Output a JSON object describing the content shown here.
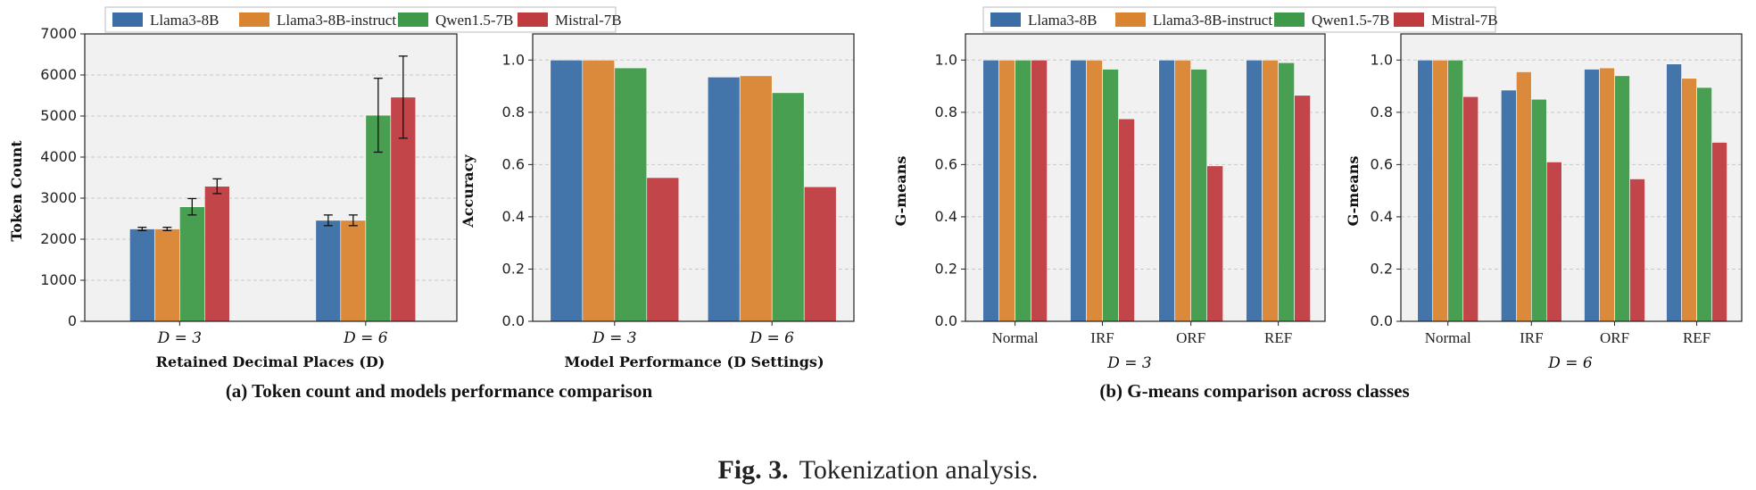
{
  "figure_caption": {
    "label": "Fig. 3.",
    "text": "Tokenization analysis."
  },
  "colors": {
    "Llama3-8B": "#3a6ea5",
    "Llama3-8B-instruct": "#d98430",
    "Qwen1.5-7B": "#3e9a48",
    "Mistral-7B": "#bf3b3f",
    "panel_bg": "#f1f1f1"
  },
  "legend_a": [
    "Llama3-8B",
    "Llama3-8B-instruct",
    "Qwen1.5-7B",
    "Mistral-7B"
  ],
  "legend_b": [
    "Llama3-8B",
    "Llama3-8B-instruct",
    "Qwen1.5-7B",
    "Mistral-7B"
  ],
  "caption_a": "(a) Token count and models performance comparison",
  "caption_b": "(b) G-means comparison across classes",
  "chart_data": [
    {
      "id": "token",
      "type": "bar",
      "ylabel": "Token Count",
      "xlabel": "Retained Decimal Places (D)",
      "categories": [
        "D = 3",
        "D = 6"
      ],
      "ylim": [
        0,
        7000
      ],
      "yticks": [
        0,
        1000,
        2000,
        3000,
        4000,
        5000,
        6000,
        7000
      ],
      "ytick_labels": [
        "0",
        "1000",
        "2000",
        "3000",
        "4000",
        "5000",
        "6000",
        "7000"
      ],
      "series": [
        {
          "name": "Llama3-8B",
          "values": [
            2250,
            2460
          ],
          "errors": [
            40,
            130
          ]
        },
        {
          "name": "Llama3-8B-instruct",
          "values": [
            2250,
            2460
          ],
          "errors": [
            40,
            130
          ]
        },
        {
          "name": "Qwen1.5-7B",
          "values": [
            2790,
            5020
          ],
          "errors": [
            200,
            900
          ]
        },
        {
          "name": "Mistral-7B",
          "values": [
            3290,
            5460
          ],
          "errors": [
            180,
            1000
          ]
        }
      ]
    },
    {
      "id": "accuracy",
      "type": "bar",
      "ylabel": "Accuracy",
      "xlabel": "Model Performance (D Settings)",
      "categories": [
        "D = 3",
        "D = 6"
      ],
      "ylim": [
        0,
        1.1
      ],
      "yticks": [
        0,
        0.2,
        0.4,
        0.6,
        0.8,
        1.0
      ],
      "ytick_labels": [
        "0.0",
        "0.2",
        "0.4",
        "0.6",
        "0.8",
        "1.0"
      ],
      "series": [
        {
          "name": "Llama3-8B",
          "values": [
            1.0,
            0.935
          ]
        },
        {
          "name": "Llama3-8B-instruct",
          "values": [
            1.0,
            0.94
          ]
        },
        {
          "name": "Qwen1.5-7B",
          "values": [
            0.97,
            0.875
          ]
        },
        {
          "name": "Mistral-7B",
          "values": [
            0.55,
            0.515
          ]
        }
      ]
    },
    {
      "id": "gmeans3",
      "type": "bar",
      "ylabel": "G-means",
      "xlabel": "D = 3",
      "categories": [
        "Normal",
        "IRF",
        "ORF",
        "REF"
      ],
      "ylim": [
        0,
        1.1
      ],
      "yticks": [
        0,
        0.2,
        0.4,
        0.6,
        0.8,
        1.0
      ],
      "ytick_labels": [
        "0.0",
        "0.2",
        "0.4",
        "0.6",
        "0.8",
        "1.0"
      ],
      "series": [
        {
          "name": "Llama3-8B",
          "values": [
            1.0,
            1.0,
            1.0,
            1.0
          ]
        },
        {
          "name": "Llama3-8B-instruct",
          "values": [
            1.0,
            1.0,
            1.0,
            1.0
          ]
        },
        {
          "name": "Qwen1.5-7B",
          "values": [
            1.0,
            0.965,
            0.965,
            0.99
          ]
        },
        {
          "name": "Mistral-7B",
          "values": [
            1.0,
            0.775,
            0.595,
            0.865
          ]
        }
      ]
    },
    {
      "id": "gmeans6",
      "type": "bar",
      "ylabel": "G-means",
      "xlabel": "D = 6",
      "categories": [
        "Normal",
        "IRF",
        "ORF",
        "REF"
      ],
      "ylim": [
        0,
        1.1
      ],
      "yticks": [
        0,
        0.2,
        0.4,
        0.6,
        0.8,
        1.0
      ],
      "ytick_labels": [
        "0.0",
        "0.2",
        "0.4",
        "0.6",
        "0.8",
        "1.0"
      ],
      "series": [
        {
          "name": "Llama3-8B",
          "values": [
            1.0,
            0.885,
            0.965,
            0.985
          ]
        },
        {
          "name": "Llama3-8B-instruct",
          "values": [
            1.0,
            0.955,
            0.97,
            0.93
          ]
        },
        {
          "name": "Qwen1.5-7B",
          "values": [
            1.0,
            0.85,
            0.94,
            0.895
          ]
        },
        {
          "name": "Mistral-7B",
          "values": [
            0.86,
            0.61,
            0.545,
            0.685
          ]
        }
      ]
    }
  ]
}
